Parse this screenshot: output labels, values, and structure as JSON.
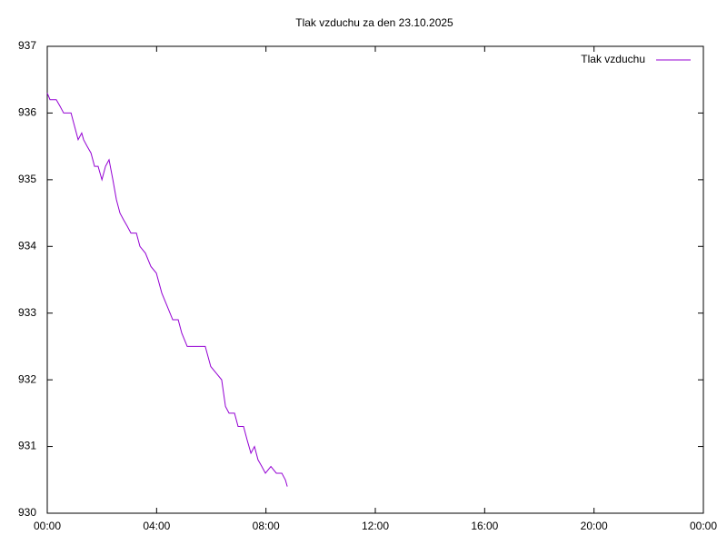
{
  "chart_data": {
    "type": "line",
    "title": "Tlak vzduchu za den 23.10.2025",
    "x": [
      0,
      0.1,
      0.33,
      0.47,
      0.6,
      0.87,
      1.0,
      1.13,
      1.26,
      1.33,
      1.46,
      1.6,
      1.73,
      1.86,
      2.0,
      2.13,
      2.26,
      2.4,
      2.53,
      2.66,
      2.79,
      2.93,
      3.06,
      3.26,
      3.39,
      3.59,
      3.79,
      3.99,
      4.19,
      4.39,
      4.59,
      4.79,
      4.92,
      5.12,
      5.32,
      5.59,
      5.78,
      5.98,
      6.18,
      6.38,
      6.52,
      6.65,
      6.85,
      6.98,
      7.18,
      7.31,
      7.45,
      7.58,
      7.71,
      7.85,
      7.98,
      8.18,
      8.38,
      8.58,
      8.71,
      8.78
    ],
    "series": [
      {
        "name": "Tlak vzduchu",
        "color": "#9400d3",
        "values": [
          936.3,
          936.2,
          936.2,
          936.1,
          936.0,
          936.0,
          935.8,
          935.6,
          935.7,
          935.6,
          935.5,
          935.4,
          935.2,
          935.2,
          935.0,
          935.2,
          935.3,
          935.0,
          934.7,
          934.5,
          934.4,
          934.3,
          934.2,
          934.2,
          934.0,
          933.9,
          933.7,
          933.6,
          933.3,
          933.1,
          932.9,
          932.9,
          932.7,
          932.5,
          932.5,
          932.5,
          932.5,
          932.2,
          932.1,
          932.0,
          931.6,
          931.5,
          931.5,
          931.3,
          931.3,
          931.1,
          930.9,
          931.0,
          930.8,
          930.7,
          930.6,
          930.7,
          930.6,
          930.6,
          930.5,
          930.4
        ]
      }
    ],
    "xlim": [
      0,
      24
    ],
    "xticks": [
      {
        "value": 0,
        "label": "00:00"
      },
      {
        "value": 4,
        "label": "04:00"
      },
      {
        "value": 8,
        "label": "08:00"
      },
      {
        "value": 12,
        "label": "12:00"
      },
      {
        "value": 16,
        "label": "16:00"
      },
      {
        "value": 20,
        "label": "20:00"
      },
      {
        "value": 24,
        "label": "00:00"
      }
    ],
    "ylim": [
      930,
      937
    ],
    "yticks": [
      930,
      931,
      932,
      933,
      934,
      935,
      936,
      937
    ],
    "grid": false,
    "legend": "top-right"
  }
}
